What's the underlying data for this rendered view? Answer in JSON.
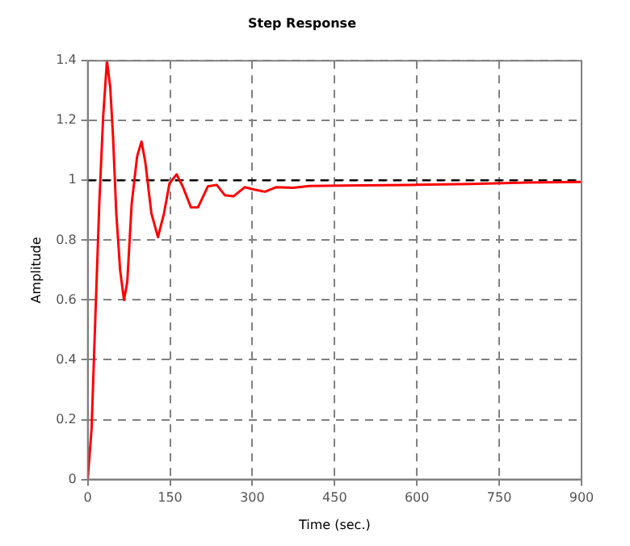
{
  "chart_data": {
    "type": "line",
    "title": "Step Response",
    "xlabel": "Time (sec.)",
    "ylabel": "Amplitude",
    "xlim": [
      0,
      900
    ],
    "xticks": [
      0,
      150,
      300,
      450,
      600,
      750,
      900
    ],
    "ylim": [
      0,
      1.4
    ],
    "yticks": [
      0,
      0.2,
      0.4,
      0.6,
      0.8,
      1,
      1.2,
      1.4
    ],
    "grid": true,
    "legend": false,
    "marker": "none",
    "line_style": "solid",
    "ref_lines": [
      {
        "axis": "y",
        "value": 1,
        "color": "#000000",
        "line_style": "dashed"
      }
    ],
    "series": [
      {
        "color": "#ff0000",
        "x": [
          0,
          7,
          14,
          21,
          28,
          35,
          41,
          46,
          52,
          59,
          66,
          72,
          80,
          90,
          98,
          105,
          116,
          128,
          139,
          149,
          162,
          173,
          188,
          201,
          219,
          235,
          250,
          266,
          286,
          302,
          323,
          343,
          374,
          405,
          500,
          600,
          700,
          800,
          900
        ],
        "values": [
          0,
          0.17,
          0.55,
          0.92,
          1.21,
          1.4,
          1.31,
          1.15,
          0.89,
          0.7,
          0.6,
          0.66,
          0.92,
          1.08,
          1.13,
          1.06,
          0.89,
          0.81,
          0.89,
          0.99,
          1.02,
          0.98,
          0.91,
          0.91,
          0.98,
          0.985,
          0.95,
          0.947,
          0.977,
          0.97,
          0.962,
          0.977,
          0.975,
          0.981,
          0.983,
          0.985,
          0.988,
          0.993,
          0.995
        ]
      }
    ]
  }
}
